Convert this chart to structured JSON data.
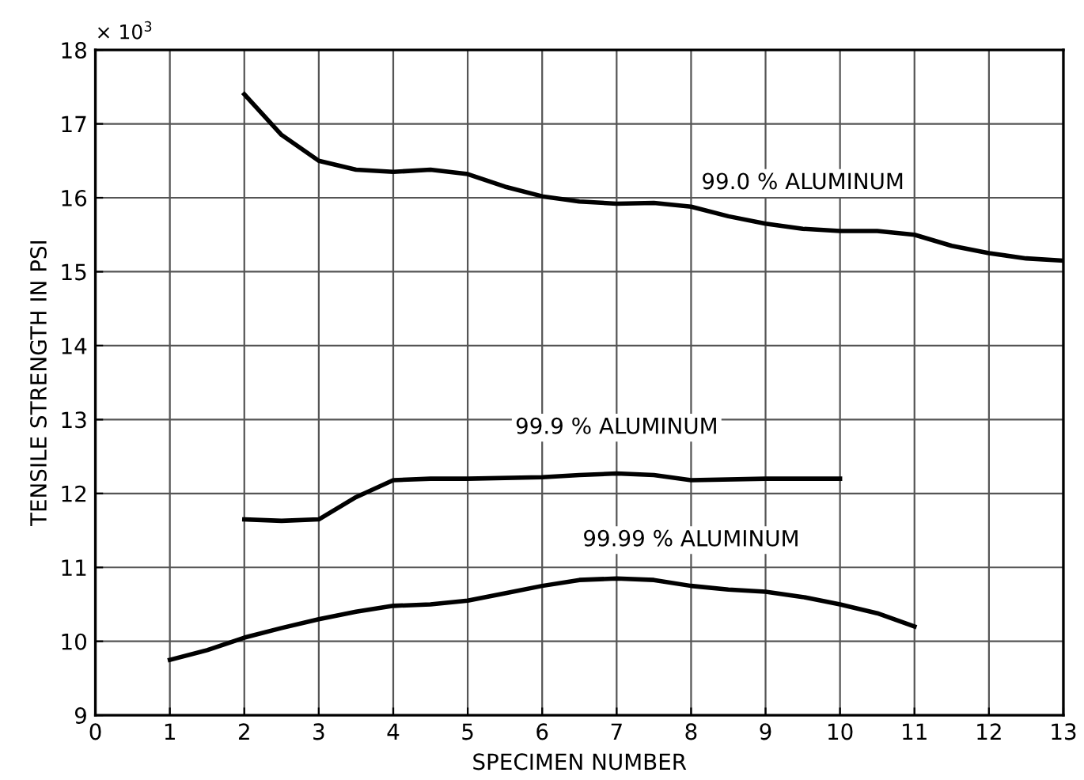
{
  "chart_data": {
    "type": "line",
    "xlabel": "SPECIMEN NUMBER",
    "ylabel": "TENSILE STRENGTH IN PSI",
    "xlim": [
      0,
      13
    ],
    "xticks": [
      0,
      1,
      2,
      3,
      4,
      5,
      6,
      7,
      8,
      9,
      10,
      11,
      12,
      13
    ],
    "ylim": [
      9,
      18
    ],
    "yticks": [
      9,
      10,
      11,
      12,
      13,
      14,
      15,
      16,
      17,
      18
    ],
    "grid": true,
    "legend": false,
    "marker": "none",
    "line_style": "solid",
    "series": [
      {
        "name": "99.0 % ALUMINUM",
        "color": "#000000",
        "x": [
          2,
          2.5,
          3,
          3.5,
          4,
          4.5,
          5,
          5.5,
          6,
          6.5,
          7,
          7.5,
          8,
          8.5,
          9,
          9.5,
          10,
          10.5,
          11,
          11.5,
          12,
          12.5,
          13
        ],
        "values": [
          17.4,
          16.85,
          16.5,
          16.38,
          16.35,
          16.38,
          16.32,
          16.15,
          16.02,
          15.95,
          15.92,
          15.93,
          15.88,
          15.75,
          15.65,
          15.58,
          15.55,
          15.55,
          15.5,
          15.35,
          15.25,
          15.18,
          15.15
        ]
      },
      {
        "name": "99.9 % ALUMINUM",
        "color": "#000000",
        "x": [
          2,
          2.5,
          3,
          3.5,
          4,
          4.5,
          5,
          6,
          6.5,
          7,
          7.5,
          8,
          9,
          10
        ],
        "values": [
          11.65,
          11.63,
          11.65,
          11.95,
          12.18,
          12.2,
          12.2,
          12.22,
          12.25,
          12.27,
          12.25,
          12.18,
          12.2,
          12.2
        ]
      },
      {
        "name": "99.99 % ALUMINUM",
        "color": "#000000",
        "x": [
          1,
          1.5,
          2,
          2.5,
          3,
          3.5,
          4,
          4.5,
          5,
          5.5,
          6,
          6.5,
          7,
          7.5,
          8,
          8.5,
          9,
          9.5,
          10,
          10.5,
          11
        ],
        "values": [
          9.75,
          9.88,
          10.05,
          10.18,
          10.3,
          10.4,
          10.48,
          10.5,
          10.55,
          10.65,
          10.75,
          10.83,
          10.85,
          10.83,
          10.75,
          10.7,
          10.67,
          10.6,
          10.5,
          10.38,
          10.2
        ]
      }
    ],
    "annotations": [
      "× 10$^{3}$"
    ]
  }
}
